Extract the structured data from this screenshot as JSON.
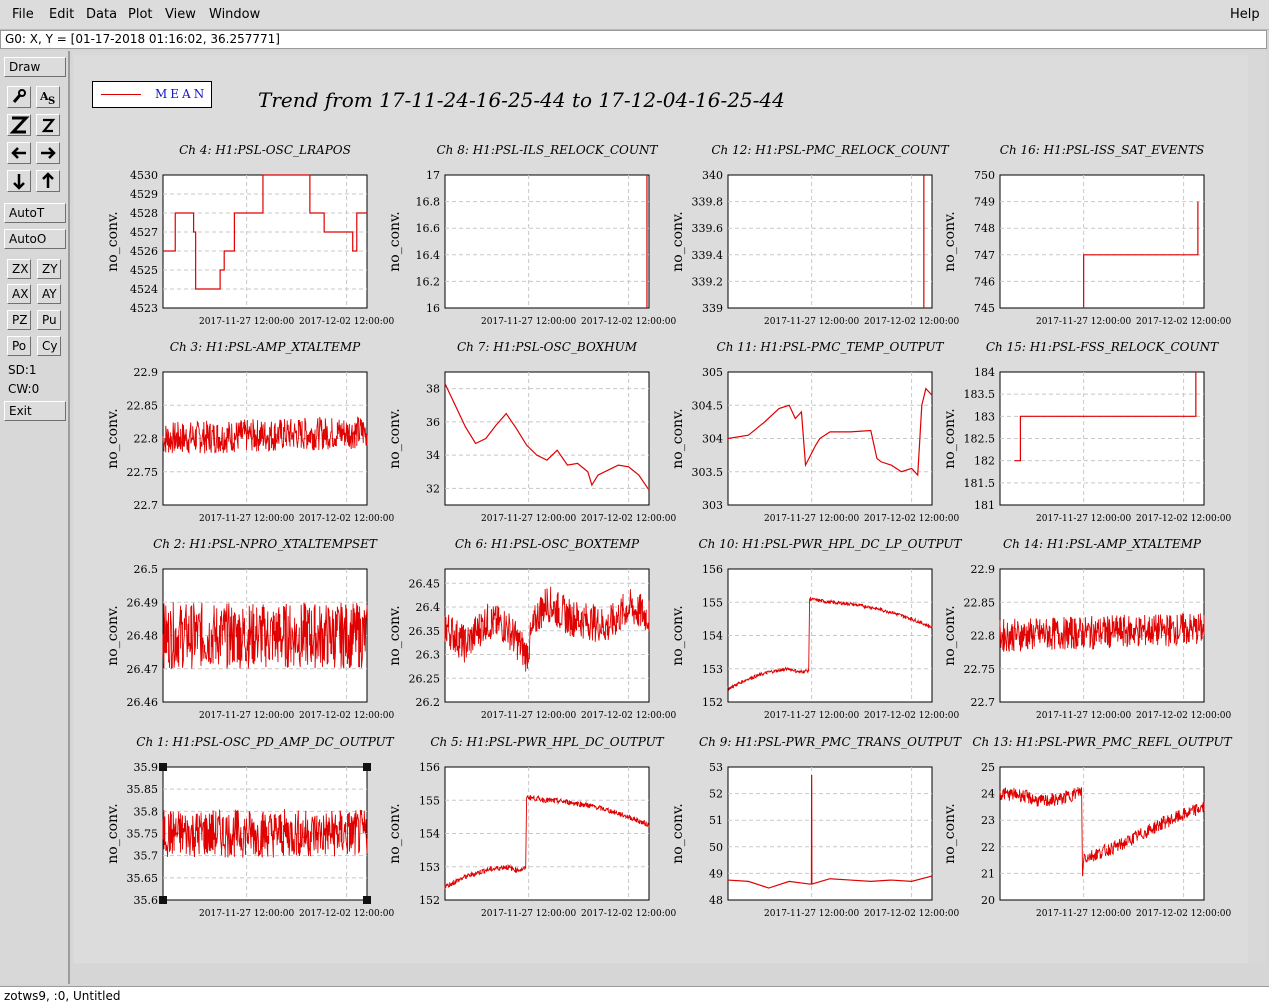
{
  "menubar": {
    "items": [
      "File",
      "Edit",
      "Data",
      "Plot",
      "View",
      "Window"
    ],
    "help": "Help"
  },
  "cursor_readout": "G0: X, Y = [01-17-2018 01:16:02, 36.257771]",
  "toolbar": {
    "draw": "Draw",
    "autot": "AutoT",
    "autoo": "AutoO",
    "zx": "ZX",
    "zy": "ZY",
    "ax": "AX",
    "ay": "AY",
    "pz": "PZ",
    "pu": "Pu",
    "po": "Po",
    "cy": "Cy",
    "sd": "SD:1",
    "cw": "CW:0",
    "exit": "Exit"
  },
  "legend": {
    "label": "MEAN",
    "color": "#e00000"
  },
  "main_title": "Trend from 17-11-24-16-25-44 to 17-12-04-16-25-44",
  "statusbar": "zotws9, :0, Untitled",
  "chart_data": [
    {
      "type": "line",
      "title": "Ch 4: H1:PSL-OSC_LRAPOS",
      "ylabel": "no_conv.",
      "ylim": [
        4523,
        4530
      ],
      "yticks": [
        4523,
        4524,
        4525,
        4526,
        4527,
        4528,
        4529,
        4530
      ],
      "xticks": [
        "2017-11-27 12:00:00",
        "2017-12-02 12:00:00"
      ],
      "grid": true,
      "x": [
        0,
        0.06,
        0.06,
        0.15,
        0.15,
        0.16,
        0.16,
        0.28,
        0.28,
        0.3,
        0.3,
        0.35,
        0.35,
        0.49,
        0.49,
        0.72,
        0.72,
        0.79,
        0.79,
        0.93,
        0.93,
        0.95,
        0.95,
        1.0
      ],
      "values": [
        4526,
        4526,
        4528,
        4528,
        4527,
        4527,
        4524,
        4524,
        4525,
        4525,
        4526,
        4526,
        4528,
        4528,
        4530,
        4530,
        4528,
        4528,
        4527,
        4527,
        4526,
        4526,
        4528,
        4528
      ]
    },
    {
      "type": "line",
      "title": "Ch 8: H1:PSL-ILS_RELOCK_COUNT",
      "ylabel": "no_conv.",
      "ylim": [
        16,
        17
      ],
      "yticks": [
        16,
        16.2,
        16.4,
        16.6,
        16.8,
        17
      ],
      "xticks": [
        "2017-11-27 12:00:00",
        "2017-12-02 12:00:00"
      ],
      "grid": true,
      "x": [
        0.99,
        0.99
      ],
      "values": [
        16,
        17
      ]
    },
    {
      "type": "line",
      "title": "Ch 12: H1:PSL-PMC_RELOCK_COUNT",
      "ylabel": "no_conv.",
      "ylim": [
        339,
        340
      ],
      "yticks": [
        339,
        339.2,
        339.4,
        339.6,
        339.8,
        340
      ],
      "xticks": [
        "2017-11-27 12:00:00",
        "2017-12-02 12:00:00"
      ],
      "grid": true,
      "x": [
        0.96,
        0.96
      ],
      "values": [
        339,
        340
      ]
    },
    {
      "type": "line",
      "title": "Ch 16: H1:PSL-ISS_SAT_EVENTS",
      "ylabel": "no_conv.",
      "ylim": [
        745,
        750
      ],
      "yticks": [
        745,
        746,
        747,
        748,
        749,
        750
      ],
      "xticks": [
        "2017-11-27 12:00:00",
        "2017-12-02 12:00:00"
      ],
      "grid": true,
      "x": [
        0.41,
        0.41,
        0.97,
        0.97
      ],
      "values": [
        745,
        747,
        747,
        749
      ]
    },
    {
      "type": "line",
      "title": "Ch 3: H1:PSL-AMP_XTALTEMP",
      "ylabel": "no_conv.",
      "ylim": [
        22.7,
        22.9
      ],
      "yticks": [
        22.7,
        22.75,
        22.8,
        22.85,
        22.9
      ],
      "xticks": [
        "2017-11-27 12:00:00",
        "2017-12-02 12:00:00"
      ],
      "grid": true,
      "x": [
        0,
        1
      ],
      "values": [
        22.8,
        22.81
      ]
    },
    {
      "type": "line",
      "title": "Ch 7: H1:PSL-OSC_BOXHUM",
      "ylabel": "no_conv.",
      "ylim": [
        31,
        39
      ],
      "yticks": [
        32,
        34,
        36,
        38
      ],
      "xticks": [
        "2017-11-27 12:00:00",
        "2017-12-02 12:00:00"
      ],
      "grid": true,
      "x": [
        0,
        0.05,
        0.1,
        0.15,
        0.2,
        0.25,
        0.3,
        0.35,
        0.4,
        0.45,
        0.5,
        0.55,
        0.6,
        0.65,
        0.7,
        0.72,
        0.75,
        0.8,
        0.85,
        0.9,
        0.95,
        1.0
      ],
      "values": [
        38.3,
        37,
        35.7,
        34.7,
        35,
        35.8,
        36.5,
        35.6,
        34.6,
        34,
        33.7,
        34.3,
        33.4,
        33.5,
        33,
        32.2,
        32.8,
        33.1,
        33.4,
        33.3,
        32.8,
        31.9
      ]
    },
    {
      "type": "line",
      "title": "Ch 11: H1:PSL-PMC_TEMP_OUTPUT",
      "ylabel": "no_conv.",
      "ylim": [
        303,
        305
      ],
      "yticks": [
        303,
        303.5,
        304,
        304.5,
        305
      ],
      "xticks": [
        "2017-11-27 12:00:00",
        "2017-12-02 12:00:00"
      ],
      "grid": true,
      "x": [
        0,
        0.1,
        0.18,
        0.25,
        0.3,
        0.33,
        0.36,
        0.38,
        0.43,
        0.45,
        0.5,
        0.6,
        0.7,
        0.73,
        0.75,
        0.8,
        0.85,
        0.9,
        0.93,
        0.95,
        0.97,
        1.0
      ],
      "values": [
        304,
        304.05,
        304.25,
        304.45,
        304.5,
        304.3,
        304.4,
        303.6,
        303.9,
        304,
        304.1,
        304.1,
        304.12,
        303.7,
        303.65,
        303.6,
        303.5,
        303.55,
        303.45,
        304.5,
        304.75,
        304.65
      ]
    },
    {
      "type": "line",
      "title": "Ch 15: H1:PSL-FSS_RELOCK_COUNT",
      "ylabel": "no_conv.",
      "ylim": [
        181,
        184
      ],
      "yticks": [
        181,
        181.5,
        182,
        182.5,
        183,
        183.5,
        184
      ],
      "xticks": [
        "2017-11-27 12:00:00",
        "2017-12-02 12:00:00"
      ],
      "grid": true,
      "x": [
        0.07,
        0.1,
        0.1,
        0.96,
        0.96
      ],
      "values": [
        182,
        182,
        183,
        183,
        184
      ]
    },
    {
      "type": "line",
      "title": "Ch 2: H1:PSL-NPRO_XTALTEMPSET",
      "ylabel": "no_conv.",
      "ylim": [
        26.46,
        26.5
      ],
      "yticks": [
        26.46,
        26.47,
        26.48,
        26.49,
        26.5
      ],
      "xticks": [
        "2017-11-27 12:00:00",
        "2017-12-02 12:00:00"
      ],
      "grid": true,
      "x": [
        0,
        1
      ],
      "values": [
        26.48,
        26.48
      ]
    },
    {
      "type": "line",
      "title": "Ch 6: H1:PSL-OSC_BOXTEMP",
      "ylabel": "no_conv.",
      "ylim": [
        26.2,
        26.48
      ],
      "yticks": [
        26.2,
        26.25,
        26.3,
        26.35,
        26.4,
        26.45
      ],
      "xticks": [
        "2017-11-27 12:00:00",
        "2017-12-02 12:00:00"
      ],
      "grid": true,
      "x": [
        0,
        0.1,
        0.2,
        0.3,
        0.35,
        0.4,
        0.45,
        0.5,
        0.6,
        0.7,
        0.8,
        0.9,
        1.0
      ],
      "values": [
        26.36,
        26.32,
        26.37,
        26.36,
        26.33,
        26.3,
        26.38,
        26.41,
        26.38,
        26.37,
        26.36,
        26.4,
        26.38
      ]
    },
    {
      "type": "line",
      "title": "Ch 10: H1:PSL-PWR_HPL_DC_LP_OUTPUT",
      "ylabel": "no_conv.",
      "ylim": [
        152,
        156
      ],
      "yticks": [
        152,
        153,
        154,
        155,
        156
      ],
      "xticks": [
        "2017-11-27 12:00:00",
        "2017-12-02 12:00:00"
      ],
      "grid": true,
      "x": [
        0,
        0.1,
        0.2,
        0.3,
        0.35,
        0.4,
        0.4,
        0.5,
        0.6,
        0.7,
        0.8,
        0.9,
        1.0
      ],
      "values": [
        152.4,
        152.7,
        152.9,
        153,
        152.9,
        152.95,
        155.1,
        155,
        154.95,
        154.85,
        154.7,
        154.5,
        154.25
      ]
    },
    {
      "type": "line",
      "title": "Ch 14: H1:PSL-AMP_XTALTEMP",
      "ylabel": "no_conv.",
      "ylim": [
        22.7,
        22.9
      ],
      "yticks": [
        22.7,
        22.75,
        22.8,
        22.85,
        22.9
      ],
      "xticks": [
        "2017-11-27 12:00:00",
        "2017-12-02 12:00:00"
      ],
      "grid": true,
      "x": [
        0,
        1
      ],
      "values": [
        22.8,
        22.81
      ]
    },
    {
      "type": "line",
      "title": "Ch 1: H1:PSL-OSC_PD_AMP_DC_OUTPUT",
      "ylabel": "no_conv.",
      "ylim": [
        35.6,
        35.9
      ],
      "yticks": [
        35.6,
        35.65,
        35.7,
        35.75,
        35.8,
        35.85,
        35.9
      ],
      "xticks": [
        "2017-11-27 12:00:00",
        "2017-12-02 12:00:00"
      ],
      "grid": true,
      "x": [
        0,
        1
      ],
      "values": [
        35.75,
        35.75
      ]
    },
    {
      "type": "line",
      "title": "Ch 5: H1:PSL-PWR_HPL_DC_OUTPUT",
      "ylabel": "no_conv.",
      "ylim": [
        152,
        156
      ],
      "yticks": [
        152,
        153,
        154,
        155,
        156
      ],
      "xticks": [
        "2017-11-27 12:00:00",
        "2017-12-02 12:00:00"
      ],
      "grid": true,
      "x": [
        0,
        0.1,
        0.2,
        0.3,
        0.35,
        0.4,
        0.4,
        0.5,
        0.6,
        0.7,
        0.8,
        0.9,
        1.0
      ],
      "values": [
        152.4,
        152.7,
        152.9,
        153,
        152.9,
        152.95,
        155.1,
        155,
        154.95,
        154.85,
        154.7,
        154.5,
        154.25
      ]
    },
    {
      "type": "line",
      "title": "Ch 9: H1:PSL-PWR_PMC_TRANS_OUTPUT",
      "ylabel": "no_conv.",
      "ylim": [
        48,
        53
      ],
      "yticks": [
        48,
        49,
        50,
        51,
        52,
        53
      ],
      "xticks": [
        "2017-11-27 12:00:00",
        "2017-12-02 12:00:00"
      ],
      "grid": true,
      "x": [
        0,
        0.1,
        0.2,
        0.3,
        0.4,
        0.409,
        0.41,
        0.411,
        0.5,
        0.6,
        0.7,
        0.8,
        0.9,
        1.0
      ],
      "values": [
        48.75,
        48.7,
        48.45,
        48.7,
        48.6,
        48.6,
        52.7,
        48.6,
        48.8,
        48.75,
        48.7,
        48.75,
        48.7,
        48.9
      ]
    },
    {
      "type": "line",
      "title": "Ch 13: H1:PSL-PWR_PMC_REFL_OUTPUT",
      "ylabel": "no_conv.",
      "ylim": [
        20,
        25
      ],
      "yticks": [
        20,
        21,
        22,
        23,
        24,
        25
      ],
      "xticks": [
        "2017-11-27 12:00:00",
        "2017-12-02 12:00:00"
      ],
      "grid": true,
      "x": [
        0,
        0.1,
        0.2,
        0.3,
        0.4,
        0.401,
        0.41,
        0.42,
        0.5,
        0.6,
        0.7,
        0.8,
        0.9,
        1.0
      ],
      "values": [
        24,
        23.95,
        23.7,
        23.8,
        24.1,
        20.3,
        21.7,
        21.6,
        21.8,
        22.1,
        22.5,
        22.9,
        23.2,
        23.5
      ]
    }
  ]
}
